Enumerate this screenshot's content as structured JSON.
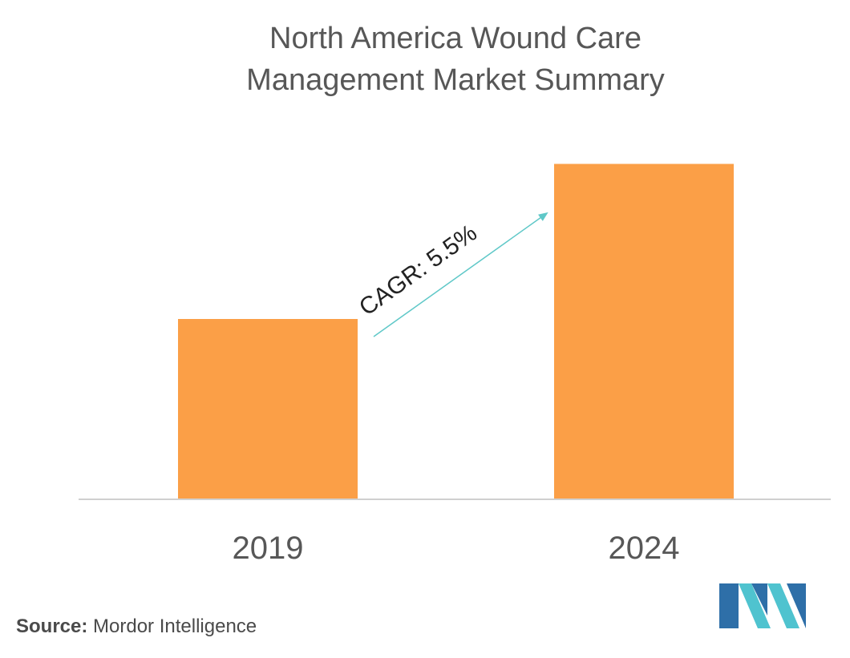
{
  "chart_data": {
    "type": "bar",
    "title": "North America Wound Care Management Market Summary",
    "title_lines": [
      "North America Wound Care",
      "Management Market Summary"
    ],
    "categories": [
      "2019",
      "2024"
    ],
    "values": [
      1.0,
      1.86
    ],
    "xlabel": "",
    "ylabel": "",
    "ylim": [
      0,
      2.0
    ],
    "grid": false,
    "annotation": "CAGR: 5.5%",
    "colors": {
      "bar": "#FB9F47",
      "axis": "#d0d0d0",
      "arrow": "#5FC8C8",
      "text": "#575757"
    }
  },
  "source": {
    "label": "Source:",
    "text": "Mordor Intelligence"
  },
  "logo": {
    "icon": "mordor-intelligence-logo",
    "colors": [
      "#2E6FA8",
      "#4FC3CF"
    ]
  }
}
